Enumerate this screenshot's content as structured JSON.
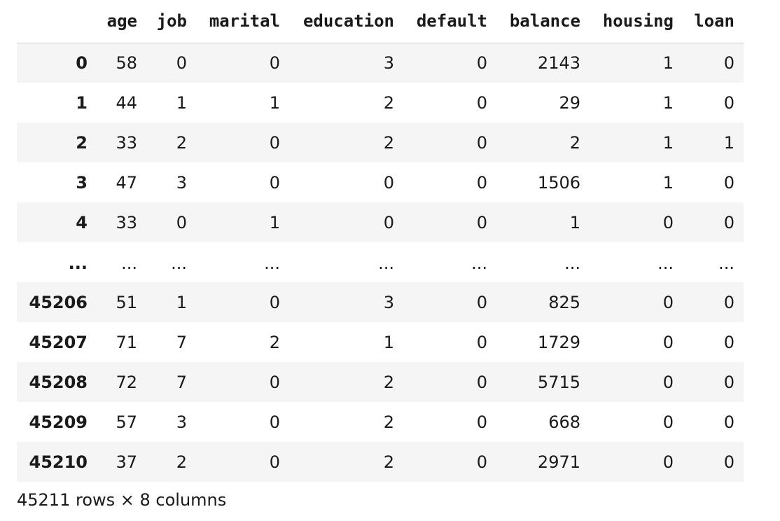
{
  "table": {
    "index_header": "",
    "columns": [
      "age",
      "job",
      "marital",
      "education",
      "default",
      "balance",
      "housing",
      "loan"
    ],
    "rows": [
      {
        "index": "0",
        "cells": [
          "58",
          "0",
          "0",
          "3",
          "0",
          "2143",
          "1",
          "0"
        ]
      },
      {
        "index": "1",
        "cells": [
          "44",
          "1",
          "1",
          "2",
          "0",
          "29",
          "1",
          "0"
        ]
      },
      {
        "index": "2",
        "cells": [
          "33",
          "2",
          "0",
          "2",
          "0",
          "2",
          "1",
          "1"
        ]
      },
      {
        "index": "3",
        "cells": [
          "47",
          "3",
          "0",
          "0",
          "0",
          "1506",
          "1",
          "0"
        ]
      },
      {
        "index": "4",
        "cells": [
          "33",
          "0",
          "1",
          "0",
          "0",
          "1",
          "0",
          "0"
        ]
      },
      {
        "index": "...",
        "cells": [
          "...",
          "...",
          "...",
          "...",
          "...",
          "...",
          "...",
          "..."
        ],
        "ellipsis": true
      },
      {
        "index": "45206",
        "cells": [
          "51",
          "1",
          "0",
          "3",
          "0",
          "825",
          "0",
          "0"
        ]
      },
      {
        "index": "45207",
        "cells": [
          "71",
          "7",
          "2",
          "1",
          "0",
          "1729",
          "0",
          "0"
        ]
      },
      {
        "index": "45208",
        "cells": [
          "72",
          "7",
          "0",
          "2",
          "0",
          "5715",
          "0",
          "0"
        ]
      },
      {
        "index": "45209",
        "cells": [
          "57",
          "3",
          "0",
          "2",
          "0",
          "668",
          "0",
          "0"
        ]
      },
      {
        "index": "45210",
        "cells": [
          "37",
          "2",
          "0",
          "2",
          "0",
          "2971",
          "0",
          "0"
        ]
      }
    ]
  },
  "footer": {
    "shape_text": "45211 rows × 8 columns"
  }
}
